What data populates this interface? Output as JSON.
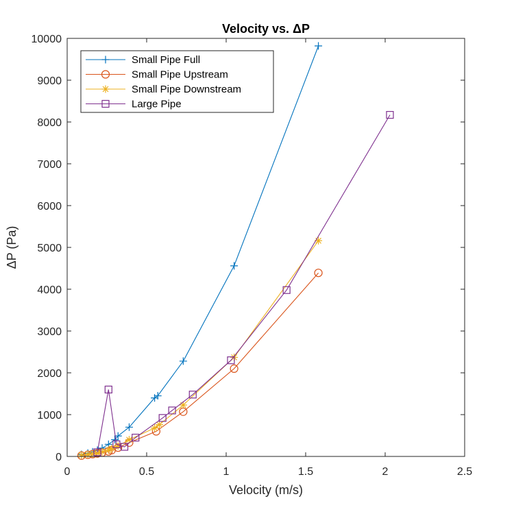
{
  "chart_data": {
    "type": "line",
    "title": "Velocity vs. ΔP",
    "xlabel": "Velocity (m/s)",
    "ylabel": "ΔP (Pa)",
    "xlim": [
      0,
      2.5
    ],
    "ylim": [
      0,
      10000
    ],
    "xticks": [
      0,
      0.5,
      1,
      1.5,
      2,
      2.5
    ],
    "xtick_labels": [
      "0",
      "0.5",
      "1",
      "1.5",
      "2",
      "2.5"
    ],
    "yticks": [
      0,
      1000,
      2000,
      3000,
      4000,
      5000,
      6000,
      7000,
      8000,
      9000,
      10000
    ],
    "ytick_labels": [
      "0",
      "1000",
      "2000",
      "3000",
      "4000",
      "5000",
      "6000",
      "7000",
      "8000",
      "9000",
      "10000"
    ],
    "grid": false,
    "legend_position": "top-left",
    "series": [
      {
        "name": "Small Pipe Full",
        "color": "#0072BD",
        "marker": "plus",
        "x": [
          0.09,
          0.13,
          0.16,
          0.19,
          0.22,
          0.26,
          0.3,
          0.32,
          0.39,
          0.55,
          0.57,
          0.73,
          1.05,
          1.58
        ],
        "y": [
          50,
          80,
          110,
          150,
          200,
          290,
          400,
          490,
          700,
          1400,
          1450,
          2280,
          4560,
          9820
        ]
      },
      {
        "name": "Small Pipe Upstream",
        "color": "#D95319",
        "marker": "circle",
        "x": [
          0.09,
          0.13,
          0.16,
          0.19,
          0.22,
          0.26,
          0.28,
          0.32,
          0.39,
          0.56,
          0.73,
          1.05,
          1.58
        ],
        "y": [
          20,
          40,
          55,
          70,
          90,
          120,
          150,
          210,
          330,
          600,
          1070,
          2100,
          4390
        ]
      },
      {
        "name": "Small Pipe Downstream",
        "color": "#EDB120",
        "marker": "asterisk",
        "x": [
          0.09,
          0.13,
          0.16,
          0.19,
          0.22,
          0.26,
          0.28,
          0.32,
          0.39,
          0.55,
          0.58,
          0.73,
          1.05,
          1.58
        ],
        "y": [
          30,
          45,
          60,
          80,
          110,
          150,
          190,
          250,
          400,
          680,
          760,
          1230,
          2370,
          5160
        ]
      },
      {
        "name": "Large Pipe",
        "color": "#7E2F8E",
        "marker": "square",
        "x": [
          0.19,
          0.26,
          0.31,
          0.36,
          0.43,
          0.6,
          0.66,
          0.79,
          1.03,
          1.38,
          2.03
        ],
        "y": [
          100,
          1600,
          290,
          230,
          450,
          920,
          1100,
          1480,
          2300,
          3980,
          8170
        ]
      }
    ]
  }
}
